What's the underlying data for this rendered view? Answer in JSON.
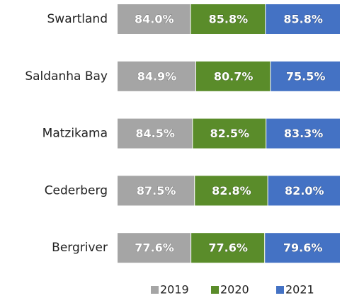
{
  "chart_data": {
    "type": "stacked-bar-100",
    "orientation": "horizontal",
    "categories": [
      "Swartland",
      "Saldanha Bay",
      "Matzikama",
      "Cederberg",
      "Bergriver"
    ],
    "series": [
      {
        "name": "2019",
        "color": "#a5a5a5",
        "values": [
          84.0,
          84.9,
          84.5,
          87.5,
          77.6
        ],
        "value_labels": [
          "84.0%",
          "84.9%",
          "84.5%",
          "87.5%",
          "77.6%"
        ]
      },
      {
        "name": "2020",
        "color": "#5a8c2a",
        "values": [
          85.8,
          80.7,
          82.5,
          82.8,
          77.6
        ],
        "value_labels": [
          "85.8%",
          "80.7%",
          "82.5%",
          "82.8%",
          "77.6%"
        ]
      },
      {
        "name": "2021",
        "color": "#4472c4",
        "values": [
          85.8,
          75.5,
          83.3,
          82.0,
          79.6
        ],
        "value_labels": [
          "85.8%",
          "75.5%",
          "83.3%",
          "82.0%",
          "79.6%"
        ]
      }
    ],
    "legend": "bottom"
  }
}
